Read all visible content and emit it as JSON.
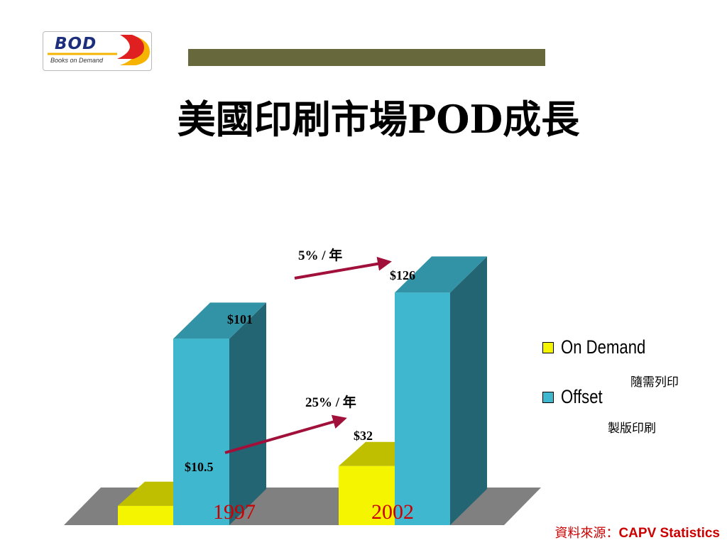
{
  "logo": {
    "brand": "BOD",
    "tagline": "Books on Demand"
  },
  "title": "美國印刷市場POD成長",
  "chart_data": {
    "type": "bar",
    "stacked": false,
    "three_d": true,
    "categories": [
      "1997",
      "2002"
    ],
    "series": [
      {
        "name": "On Demand",
        "subtitle": "隨需列印",
        "color": "#f5f500",
        "values": [
          10.5,
          32
        ],
        "value_labels": [
          "$10.5",
          "$32"
        ]
      },
      {
        "name": "Offset",
        "subtitle": "製版印刷",
        "color": "#3fb8cf",
        "values": [
          101,
          126
        ],
        "value_labels": [
          "$101",
          "$126"
        ]
      }
    ],
    "annotations": [
      {
        "series": "Offset",
        "text": "5% / 年"
      },
      {
        "series": "On Demand",
        "text": "25% / 年"
      }
    ],
    "category_label_color": "#cc0000",
    "floor_color": "#808080",
    "legend_position": "right",
    "grid": false
  },
  "source": {
    "prefix": "資料來源：",
    "name": "CAPV Statistics"
  }
}
